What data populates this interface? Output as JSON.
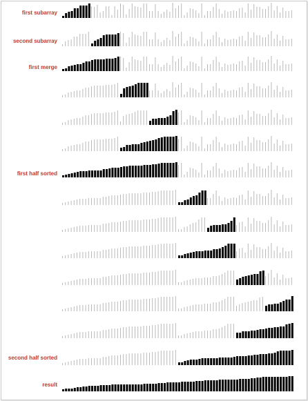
{
  "colors": {
    "highlight": "#000000",
    "faded": "#b9b9b9",
    "label": "#c0392b"
  },
  "rows": [
    {
      "label": "first subarray",
      "values": [
        8,
        10,
        11,
        13,
        15,
        16,
        18,
        20,
        21,
        22
      ],
      "start": 0,
      "span": 10
    },
    {
      "label": "second subarray",
      "values": [
        6,
        7,
        8,
        10,
        12,
        13,
        14,
        16,
        17,
        18
      ],
      "start": 10,
      "span": 10
    },
    {
      "label": "first merge"
    },
    {
      "label": ""
    },
    {
      "label": ""
    },
    {
      "label": ""
    },
    {
      "label": "first half sorted"
    },
    {
      "label": ""
    },
    {
      "label": ""
    },
    {
      "label": ""
    },
    {
      "label": ""
    },
    {
      "label": ""
    },
    {
      "label": ""
    },
    {
      "label": "second half sorted"
    },
    {
      "label": "result"
    }
  ]
}
